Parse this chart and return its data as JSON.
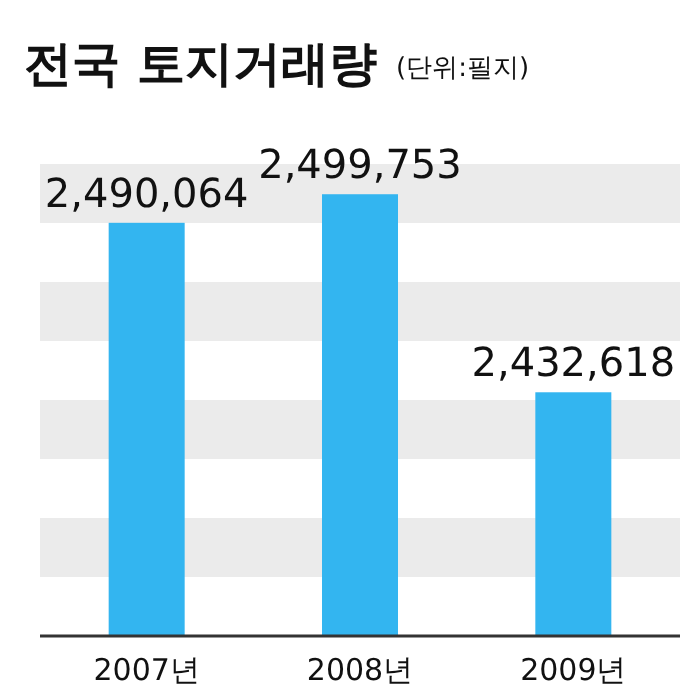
{
  "chart_data": {
    "type": "bar",
    "title": "전국 토지거래량",
    "subtitle": "(단위:필지)",
    "categories": [
      "2007년",
      "2008년",
      "2009년"
    ],
    "values": [
      2490064,
      2499753,
      2432618
    ],
    "value_labels": [
      "2,490,064",
      "2,499,753",
      "2,432,618"
    ],
    "color": "#33b5f0",
    "ylim": [
      2350000,
      2510000
    ],
    "tick_labels": "x",
    "bands": [
      {
        "axis": "y",
        "from": 2490000,
        "to": 2510000,
        "color": "#ebebeb"
      },
      {
        "axis": "y",
        "from": 2450000,
        "to": 2470000,
        "color": "#ebebeb"
      },
      {
        "axis": "y",
        "from": 2410000,
        "to": 2430000,
        "color": "#ebebeb"
      },
      {
        "axis": "y",
        "from": 2370000,
        "to": 2390000,
        "color": "#ebebeb"
      }
    ]
  }
}
